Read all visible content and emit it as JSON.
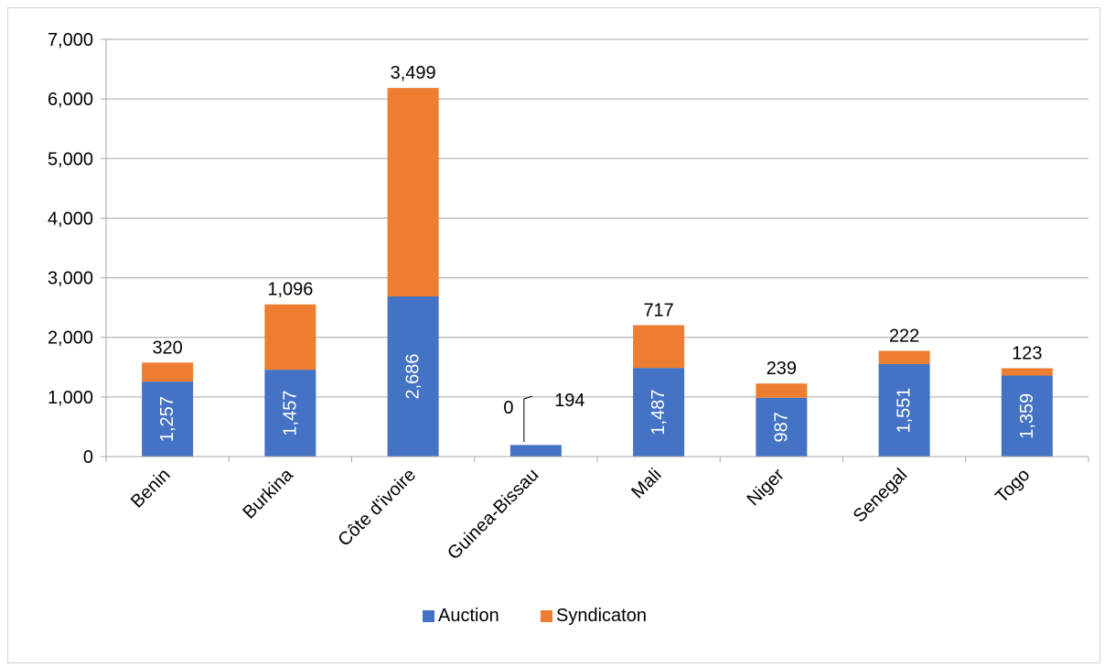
{
  "chart_data": {
    "type": "bar",
    "stacked": true,
    "categories": [
      "Benin",
      "Burkina",
      "Côte d'ivoire",
      "Guinea-Bissau",
      "Mali",
      "Niger",
      "Senegal",
      "Togo"
    ],
    "series": [
      {
        "name": "Auction",
        "color": "#4472C4",
        "values": [
          1257,
          1457,
          2686,
          194,
          1487,
          987,
          1551,
          1359
        ]
      },
      {
        "name": "Syndicaton",
        "color": "#ED7D31",
        "values": [
          320,
          1096,
          3499,
          0,
          717,
          239,
          222,
          123
        ]
      }
    ],
    "data_labels": {
      "Auction": [
        "1,257",
        "1,457",
        "2,686",
        "194",
        "1,487",
        "987",
        "1,551",
        "1,359"
      ],
      "Syndicaton": [
        "320",
        "1,096",
        "3,499",
        "0",
        "717",
        "239",
        "222",
        "123"
      ]
    },
    "y_ticks": [
      "0",
      "1,000",
      "2,000",
      "3,000",
      "4,000",
      "5,000",
      "6,000",
      "7,000"
    ],
    "ylim": [
      0,
      7000
    ],
    "grid": true,
    "legend": "bottom",
    "title": "",
    "xlabel": "",
    "ylabel": ""
  }
}
